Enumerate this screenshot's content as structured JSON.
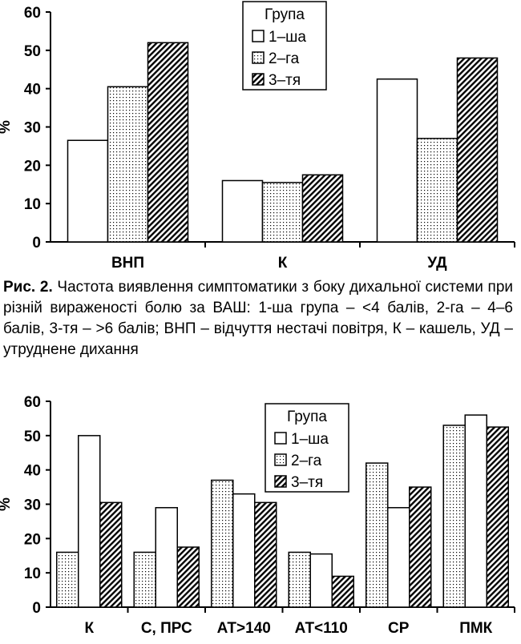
{
  "legend": {
    "title": "Група",
    "series": [
      "1–ша",
      "2–га",
      "3–тя"
    ]
  },
  "caption": {
    "label": "Рис. 2.",
    "text": "Частота виявлення симптоматики з боку дихальної системи при різній вираженості болю за ВАШ: 1-ша група – <4 балів, 2-га – 4–6 балів, 3-тя – >6 балів; ВНП – відчуття нестачі повітря, К – кашель, УД – утруднене дихання"
  },
  "chart_data": [
    {
      "type": "bar",
      "ylabel": "%",
      "ylim": [
        0,
        60
      ],
      "yticks": [
        0,
        10,
        20,
        30,
        40,
        50,
        60
      ],
      "grid": false,
      "legend_position": "top-center",
      "categories": [
        "ВНП",
        "К",
        "УД"
      ],
      "series": [
        {
          "name": "1–ша",
          "values": [
            26.5,
            16.0,
            42.5
          ]
        },
        {
          "name": "2–га",
          "values": [
            40.5,
            15.5,
            27.0
          ]
        },
        {
          "name": "3–тя",
          "values": [
            52.0,
            17.5,
            48.0
          ]
        }
      ]
    },
    {
      "type": "bar",
      "ylabel": "%",
      "ylim": [
        0,
        60
      ],
      "yticks": [
        0,
        10,
        20,
        30,
        40,
        50,
        60
      ],
      "grid": false,
      "legend_position": "top-center",
      "categories": [
        "К",
        "С, ПРС",
        "АТ>140",
        "АТ<110",
        "СР",
        "ПМК"
      ],
      "series_order_in_group": [
        1,
        0,
        2
      ],
      "series": [
        {
          "name": "1–ша",
          "values": [
            50.0,
            29.0,
            33.0,
            15.5,
            29.0,
            56.0
          ]
        },
        {
          "name": "2–га",
          "values": [
            16.0,
            16.0,
            37.0,
            16.0,
            42.0,
            53.0
          ]
        },
        {
          "name": "3–тя",
          "values": [
            30.5,
            17.5,
            30.5,
            9.0,
            35.0,
            52.5
          ]
        }
      ]
    }
  ]
}
